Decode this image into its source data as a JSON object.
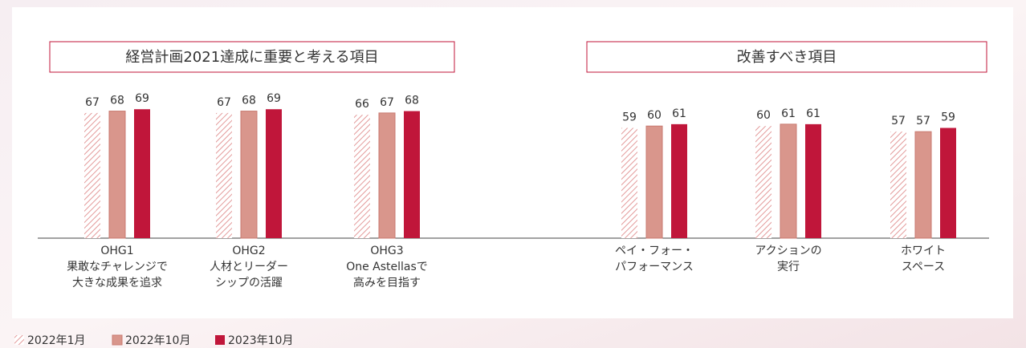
{
  "chart_data": {
    "type": "bar",
    "groups": [
      {
        "title": "経営計画2021達成に重要と考える項目",
        "categories": [
          "OHG1\n果敢なチャレンジで\n大きな成果を追求",
          "OHG2\n人材とリーダー\nシップの活躍",
          "OHG3\nOne Astellasで\n高みを目指す"
        ]
      },
      {
        "title": "改善すべき項目",
        "categories": [
          "ペイ・フォー・\nパフォーマンス",
          "アクションの\n実行",
          "ホワイト\nスペース"
        ]
      }
    ],
    "series": [
      {
        "name": "2022年1月",
        "color": "#e39a9a",
        "hatch": true,
        "values": [
          [
            67,
            67,
            66
          ],
          [
            59,
            60,
            57
          ]
        ]
      },
      {
        "name": "2022年10月",
        "color": "#d9968c",
        "values": [
          [
            68,
            68,
            67
          ],
          [
            60,
            61,
            57
          ]
        ]
      },
      {
        "name": "2023年10月",
        "color": "#c0163a",
        "values": [
          [
            69,
            69,
            68
          ],
          [
            61,
            61,
            59
          ]
        ]
      }
    ]
  }
}
